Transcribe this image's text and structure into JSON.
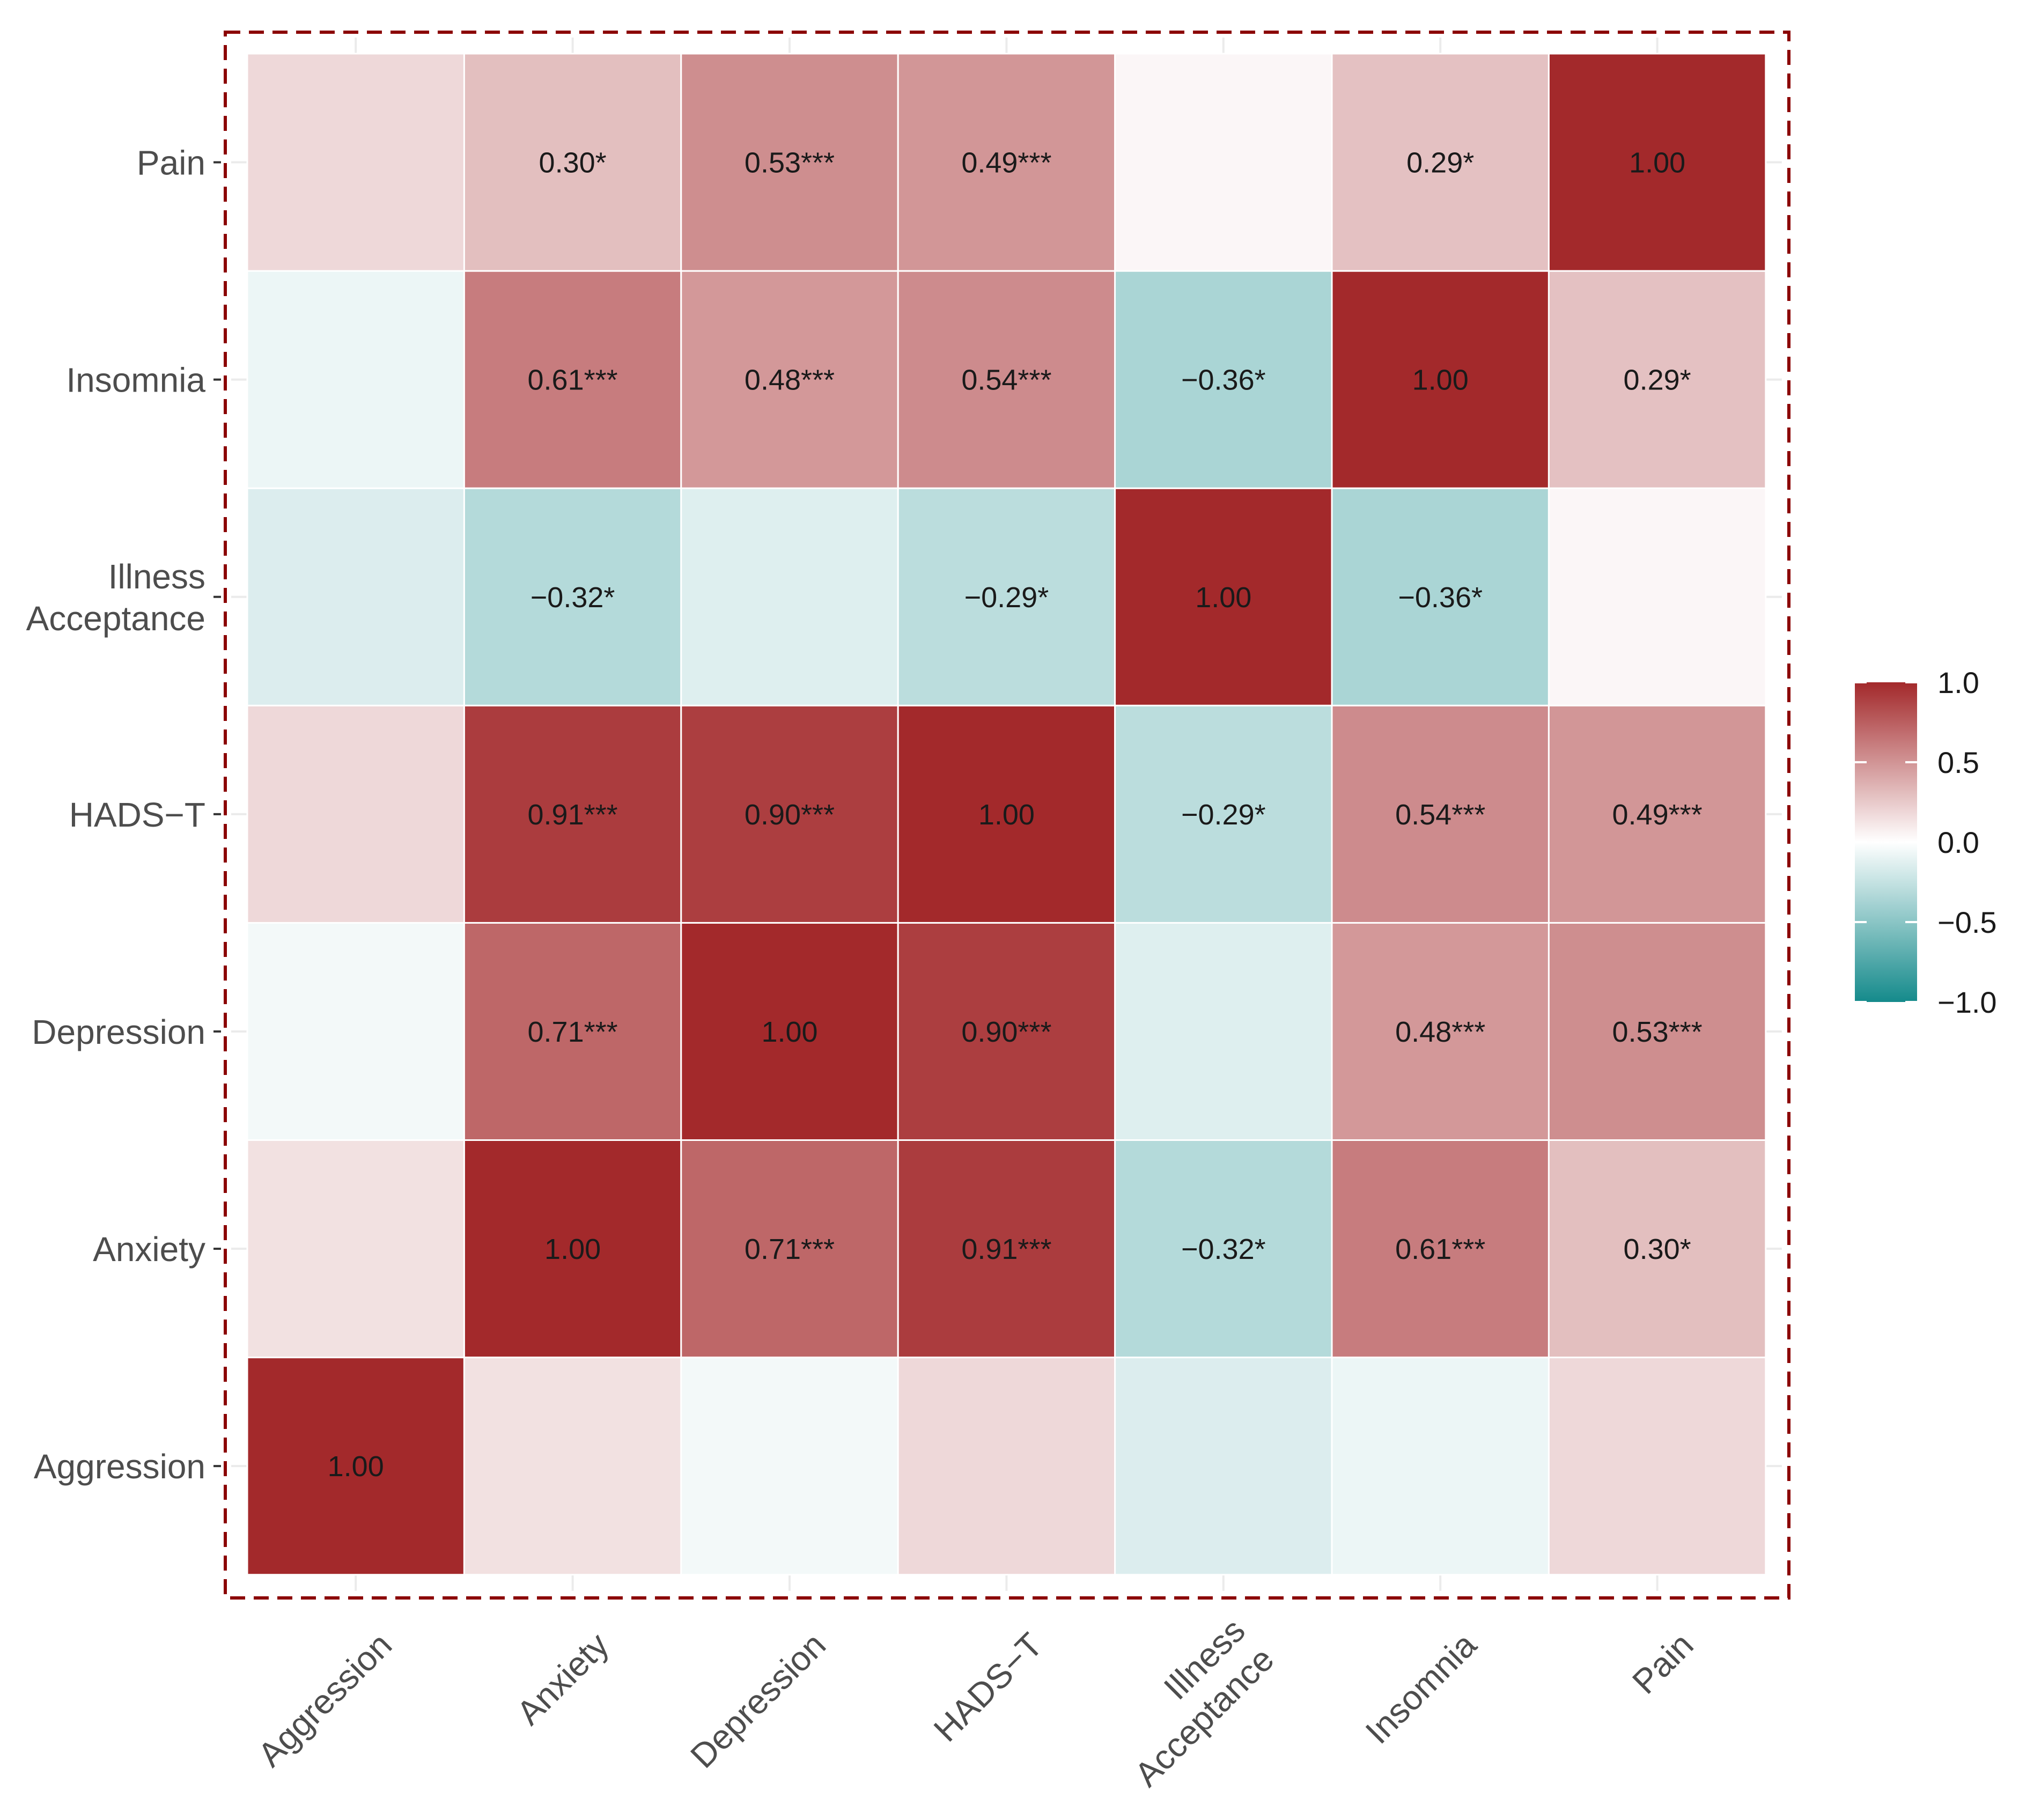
{
  "chart_data": {
    "type": "heatmap",
    "title": "",
    "xlabel": "",
    "ylabel": "",
    "x_categories": [
      "Aggression",
      "Anxiety",
      "Depression",
      "HADS−T",
      "Illness Acceptance",
      "Insomnia",
      "Pain"
    ],
    "y_categories_bottom_to_top": [
      "Aggression",
      "Anxiety",
      "Depression",
      "HADS−T",
      "Illness Acceptance",
      "Insomnia",
      "Pain"
    ],
    "x_tick_labels": [
      [
        "Aggression"
      ],
      [
        "Anxiety"
      ],
      [
        "Depression"
      ],
      [
        "HADS−T"
      ],
      [
        "Illness",
        "Acceptance"
      ],
      [
        "Insomnia"
      ],
      [
        "Pain"
      ]
    ],
    "y_tick_labels": [
      [
        "Aggression"
      ],
      [
        "Anxiety"
      ],
      [
        "Depression"
      ],
      [
        "HADS−T"
      ],
      [
        "Illness",
        "Acceptance"
      ],
      [
        "Insomnia"
      ],
      [
        "Pain"
      ]
    ],
    "matrix": [
      [
        1.0,
        0.14,
        -0.05,
        0.18,
        -0.15,
        -0.08,
        0.18
      ],
      [
        0.14,
        1.0,
        0.71,
        0.91,
        -0.32,
        0.61,
        0.3
      ],
      [
        -0.05,
        0.71,
        1.0,
        0.9,
        -0.14,
        0.48,
        0.53
      ],
      [
        0.18,
        0.91,
        0.9,
        1.0,
        -0.29,
        0.54,
        0.49
      ],
      [
        -0.15,
        -0.32,
        -0.14,
        -0.29,
        1.0,
        -0.36,
        0.04
      ],
      [
        -0.08,
        0.61,
        0.48,
        0.54,
        -0.36,
        1.0,
        0.29
      ],
      [
        0.18,
        0.3,
        0.53,
        0.49,
        0.04,
        0.29,
        1.0
      ]
    ],
    "cell_labels": [
      [
        "1.00",
        "",
        "",
        "",
        "",
        "",
        ""
      ],
      [
        "",
        "1.00",
        "0.71***",
        "0.91***",
        "−0.32*",
        "0.61***",
        "0.30*"
      ],
      [
        "",
        "0.71***",
        "1.00",
        "0.90***",
        "",
        "0.48***",
        "0.53***"
      ],
      [
        "",
        "0.91***",
        "0.90***",
        "1.00",
        "−0.29*",
        "0.54***",
        "0.49***"
      ],
      [
        "",
        "−0.32*",
        "",
        "−0.29*",
        "1.00",
        "−0.36*",
        ""
      ],
      [
        "",
        "0.61***",
        "0.48***",
        "0.54***",
        "−0.36*",
        "1.00",
        "0.29*"
      ],
      [
        "",
        "0.30*",
        "0.53***",
        "0.49***",
        "",
        "0.29*",
        "1.00"
      ]
    ],
    "color_scale": {
      "low": "#148A8B",
      "mid": "#FFFFFF",
      "high": "#A3292B",
      "domain": [
        -1.0,
        0.0,
        1.0
      ]
    },
    "legend": {
      "position": "right",
      "ticks": [
        1.0,
        0.5,
        0.0,
        -0.5,
        -1.0
      ],
      "tick_labels": [
        "1.0",
        "0.5",
        "0.0",
        "−0.5",
        "−1.0"
      ]
    },
    "grid": true,
    "panel_border": {
      "style": "dashed",
      "color": "#8B0000"
    }
  }
}
